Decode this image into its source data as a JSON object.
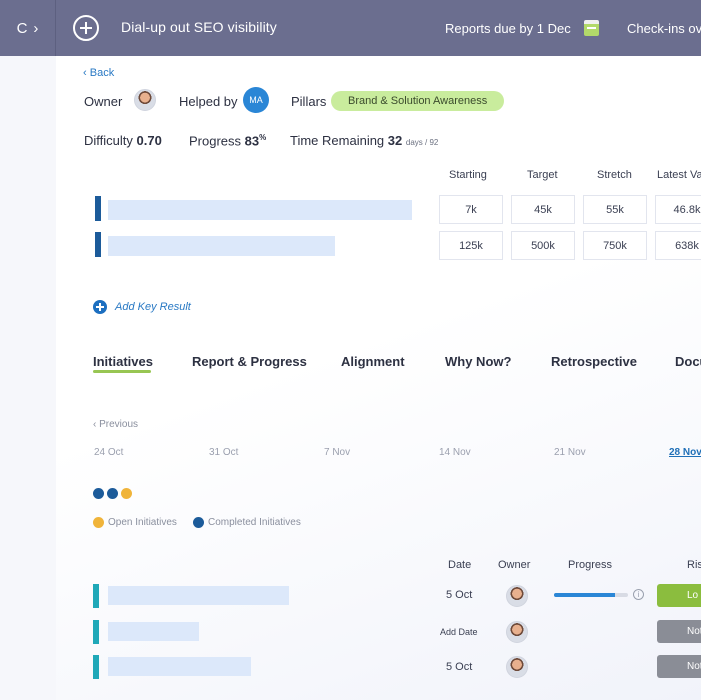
{
  "topbar": {
    "refresh_glyph": "C",
    "forward_glyph": "›",
    "title": "Dial-up out SEO visibility",
    "reports_due": "Reports due by 1 Dec",
    "checkins": "Check-ins ov"
  },
  "header": {
    "back": "Back",
    "owner_label": "Owner",
    "helped_label": "Helped by",
    "helper_initials": "MA",
    "pillars_label": "Pillars",
    "pillar": "Brand & Solution Awareness"
  },
  "metrics": {
    "difficulty_label": "Difficulty",
    "difficulty_value": "0.70",
    "progress_label": "Progress",
    "progress_value": "83",
    "progress_unit": "%",
    "time_label": "Time Remaining",
    "time_value": "32",
    "time_unit": "days / 92"
  },
  "key_results": {
    "columns": [
      "Starting",
      "Target",
      "Stretch",
      "Latest Va"
    ],
    "rows": [
      {
        "starting": "7k",
        "target": "45k",
        "stretch": "55k",
        "latest": "46.8k"
      },
      {
        "starting": "125k",
        "target": "500k",
        "stretch": "750k",
        "latest": "638k"
      }
    ],
    "add_label": "Add Key Result"
  },
  "tabs": [
    "Initiatives",
    "Report & Progress",
    "Alignment",
    "Why Now?",
    "Retrospective",
    "Docu"
  ],
  "timeline": {
    "previous": "Previous",
    "dates": [
      "24 Oct",
      "31 Oct",
      "7 Nov",
      "14 Nov",
      "21 Nov",
      "28 Nov"
    ],
    "active_index": 5
  },
  "legend": {
    "open": "Open Initiatives",
    "completed": "Completed Initiatives"
  },
  "colors": {
    "open": "#f0b43a",
    "completed": "#1c5b9a",
    "risk_low": "#8bbd3e",
    "risk_not": "#8a8d96"
  },
  "initiatives": {
    "columns": [
      "Date",
      "Owner",
      "Progress",
      "Ris"
    ],
    "rows": [
      {
        "date": "5 Oct",
        "progress": 0.82,
        "risk": "Lo"
      },
      {
        "date": "Add Date",
        "risk": "Not"
      },
      {
        "date": "5 Oct",
        "risk": "Not"
      }
    ]
  }
}
